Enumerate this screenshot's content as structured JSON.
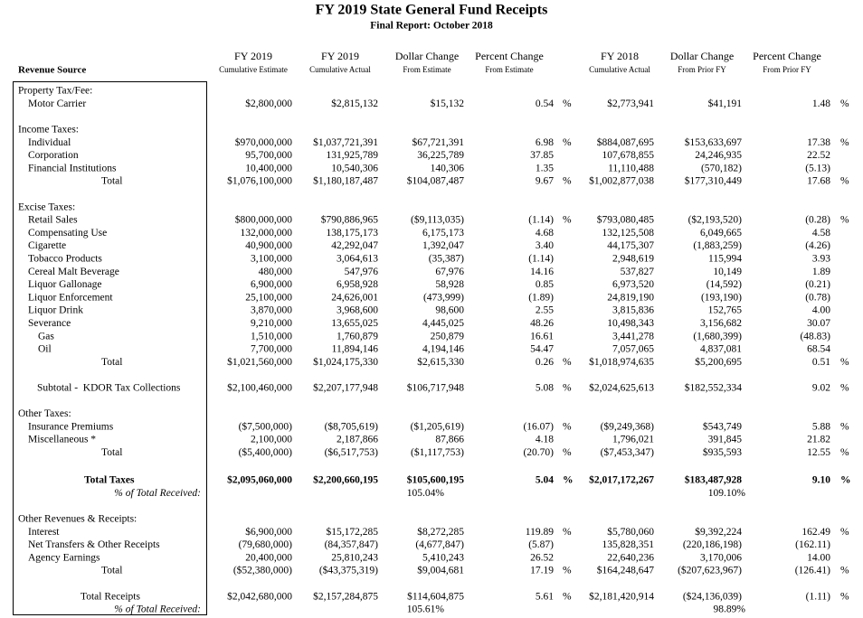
{
  "header": {
    "title": "FY 2019 State General Fund Receipts",
    "subtitle": "Final Report: October 2018"
  },
  "table": {
    "source_header": "Revenue Source",
    "columns": [
      {
        "line1": "FY 2019",
        "line2": "Cumulative Estimate"
      },
      {
        "line1": "FY 2019",
        "line2": "Cumulative Actual"
      },
      {
        "line1": "Dollar Change",
        "line2": "From Estimate"
      },
      {
        "line1": "Percent Change",
        "line2": "From Estimate"
      },
      {
        "line1": "FY 2018",
        "line2": "Cumulative Actual"
      },
      {
        "line1": "Dollar Change",
        "line2": "From Prior FY"
      },
      {
        "line1": "Percent Change",
        "line2": "From Prior FY"
      }
    ],
    "sections": [
      {
        "heading": "Property Tax/Fee:",
        "items": [
          {
            "label": "Motor Carrier",
            "cells": [
              "$2,800,000",
              "$2,815,132",
              "$15,132",
              {
                "value": "0.54",
                "unit": "%"
              },
              "$2,773,941",
              "$41,191",
              {
                "value": "1.48",
                "unit": "%"
              }
            ]
          }
        ]
      },
      {
        "heading": "Income Taxes:",
        "items": [
          {
            "label": "Individual",
            "cells": [
              "$970,000,000",
              "$1,037,721,391",
              "$67,721,391",
              {
                "value": "6.98",
                "unit": "%"
              },
              "$884,087,695",
              "$153,633,697",
              {
                "value": "17.38",
                "unit": "%"
              }
            ]
          },
          {
            "label": "Corporation",
            "cells": [
              "95,700,000",
              "131,925,789",
              "36,225,789",
              "37.85",
              "107,678,855",
              "24,246,935",
              "22.52"
            ]
          },
          {
            "label": "Financial Institutions",
            "cells": [
              "10,400,000",
              "10,540,306",
              "140,306",
              "1.35",
              "11,110,488",
              "(570,182)",
              "(5.13)"
            ]
          }
        ],
        "total": {
          "label": "Total",
          "cells": [
            "$1,076,100,000",
            "$1,180,187,487",
            "$104,087,487",
            {
              "value": "9.67",
              "unit": "%"
            },
            "$1,002,877,038",
            "$177,310,449",
            {
              "value": "17.68",
              "unit": "%"
            }
          ]
        }
      },
      {
        "heading": "Excise Taxes:",
        "items": [
          {
            "label": "Retail Sales",
            "cells": [
              "$800,000,000",
              "$790,886,965",
              "($9,113,035)",
              {
                "value": "(1.14)",
                "unit": "%"
              },
              "$793,080,485",
              "($2,193,520)",
              {
                "value": "(0.28)",
                "unit": "%"
              }
            ]
          },
          {
            "label": "Compensating Use",
            "cells": [
              "132,000,000",
              "138,175,173",
              "6,175,173",
              "4.68",
              "132,125,508",
              "6,049,665",
              "4.58"
            ]
          },
          {
            "label": "Cigarette",
            "cells": [
              "40,900,000",
              "42,292,047",
              "1,392,047",
              "3.40",
              "44,175,307",
              "(1,883,259)",
              "(4.26)"
            ]
          },
          {
            "label": "Tobacco Products",
            "cells": [
              "3,100,000",
              "3,064,613",
              "(35,387)",
              "(1.14)",
              "2,948,619",
              "115,994",
              "3.93"
            ]
          },
          {
            "label": "Cereal Malt Beverage",
            "cells": [
              "480,000",
              "547,976",
              "67,976",
              "14.16",
              "537,827",
              "10,149",
              "1.89"
            ]
          },
          {
            "label": "Liquor Gallonage",
            "cells": [
              "6,900,000",
              "6,958,928",
              "58,928",
              "0.85",
              "6,973,520",
              "(14,592)",
              "(0.21)"
            ]
          },
          {
            "label": "Liquor Enforcement",
            "cells": [
              "25,100,000",
              "24,626,001",
              "(473,999)",
              "(1.89)",
              "24,819,190",
              "(193,190)",
              "(0.78)"
            ]
          },
          {
            "label": "Liquor Drink",
            "cells": [
              "3,870,000",
              "3,968,600",
              "98,600",
              "2.55",
              "3,815,836",
              "152,765",
              "4.00"
            ]
          },
          {
            "label": "Severance",
            "cells": [
              "9,210,000",
              "13,655,025",
              "4,445,025",
              "48.26",
              "10,498,343",
              "3,156,682",
              "30.07"
            ],
            "subitems": [
              {
                "label": "Gas",
                "cells": [
                  "1,510,000",
                  "1,760,879",
                  "250,879",
                  "16.61",
                  "3,441,278",
                  "(1,680,399)",
                  "(48.83)"
                ]
              },
              {
                "label": "Oil",
                "cells": [
                  "7,700,000",
                  "11,894,146",
                  "4,194,146",
                  "54.47",
                  "7,057,065",
                  "4,837,081",
                  "68.54"
                ]
              }
            ]
          }
        ],
        "total": {
          "label": "Total",
          "cells": [
            "$1,021,560,000",
            "$1,024,175,330",
            "$2,615,330",
            {
              "value": "0.26",
              "unit": "%"
            },
            "$1,018,974,635",
            "$5,200,695",
            {
              "value": "0.51",
              "unit": "%"
            }
          ]
        }
      },
      {
        "subtotal": {
          "label": "Subtotal -  KDOR Tax Collections",
          "cells": [
            "$2,100,460,000",
            "$2,207,177,948",
            "$106,717,948",
            {
              "value": "5.08",
              "unit": "%"
            },
            "$2,024,625,613",
            "$182,552,334",
            {
              "value": "9.02",
              "unit": "%"
            }
          ]
        }
      },
      {
        "heading": "Other Taxes:",
        "items": [
          {
            "label": "Insurance Premiums",
            "cells": [
              "($7,500,000)",
              "($8,705,619)",
              "($1,205,619)",
              {
                "value": "(16.07)",
                "unit": "%"
              },
              "($9,249,368)",
              "$543,749",
              {
                "value": "5.88",
                "unit": "%"
              }
            ]
          },
          {
            "label": "Miscellaneous *",
            "cells": [
              "2,100,000",
              "2,187,866",
              "87,866",
              "4.18",
              "1,796,021",
              "391,845",
              "21.82"
            ]
          }
        ],
        "total": {
          "label": "Total",
          "cells": [
            "($5,400,000)",
            "($6,517,753)",
            "($1,117,753)",
            {
              "value": "(20.70)",
              "unit": "%"
            },
            "($7,453,347)",
            "$935,593",
            {
              "value": "12.55",
              "unit": "%"
            }
          ]
        }
      },
      {
        "taxes_total": {
          "label": "Total Taxes",
          "cells": [
            "$2,095,060,000",
            "$2,200,660,195",
            "$105,600,195",
            {
              "value": "5.04",
              "unit": "%"
            },
            "$2,017,172,267",
            "$183,487,928",
            {
              "value": "9.10",
              "unit": "%"
            }
          ]
        },
        "share": {
          "label": "% of Total Received:",
          "from_estimate": "105.04%",
          "from_prior_fy": "109.10%"
        }
      },
      {
        "heading": "Other Revenues & Receipts:",
        "items": [
          {
            "label": "Interest",
            "cells": [
              "$6,900,000",
              "$15,172,285",
              "$8,272,285",
              {
                "value": "119.89",
                "unit": "%"
              },
              "$5,780,060",
              "$9,392,224",
              {
                "value": "162.49",
                "unit": "%"
              }
            ]
          },
          {
            "label": "Net Transfers & Other Receipts",
            "cells": [
              "(79,680,000)",
              "(84,357,847)",
              "(4,677,847)",
              "(5.87)",
              "135,828,351",
              "(220,186,198)",
              "(162.11)"
            ]
          },
          {
            "label": "Agency Earnings",
            "cells": [
              "20,400,000",
              "25,810,243",
              "5,410,243",
              "26.52",
              "22,640,236",
              "3,170,006",
              "14.00"
            ]
          }
        ],
        "total": {
          "label": "Total",
          "cells": [
            "($52,380,000)",
            "($43,375,319)",
            "$9,004,681",
            {
              "value": "17.19",
              "unit": "%"
            },
            "$164,248,647",
            "($207,623,967)",
            {
              "value": "(126.41)",
              "unit": "%"
            }
          ]
        }
      },
      {
        "receipts_total": {
          "label": "Total Receipts",
          "cells": [
            "$2,042,680,000",
            "$2,157,284,875",
            "$114,604,875",
            {
              "value": "5.61",
              "unit": "%"
            },
            "$2,181,420,914",
            "($24,136,039)",
            {
              "value": "(1.11)",
              "unit": "%"
            }
          ]
        },
        "share": {
          "label": "% of Total Received:",
          "from_estimate": "105.61%",
          "from_prior_fy": "98.89%"
        }
      }
    ]
  }
}
